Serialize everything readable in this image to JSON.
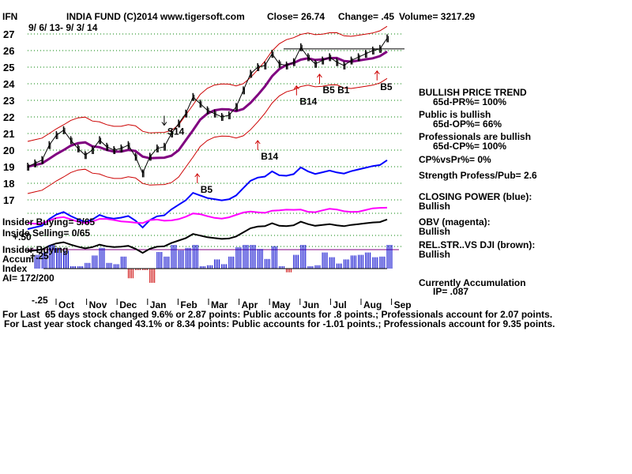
{
  "header": {
    "symbol": "IFN",
    "title": "INDIA FUND   (C)2014 www.tigersoft.com",
    "close": "Close= 26.74",
    "change": "Change= .45",
    "volume": "Volume= 3217.29",
    "date_range": "9/ 6/ 13- 9/ 3/ 14"
  },
  "chart_data": {
    "type": "line",
    "ylim": [
      17,
      27
    ],
    "y_ticks": [
      "27",
      "26",
      "25",
      "24",
      "23",
      "22",
      "21",
      "20",
      "19",
      "18",
      "17"
    ],
    "months": [
      "Oct",
      "Nov",
      "Dec",
      "Jan",
      "Feb",
      "Mar",
      "Apr",
      "May",
      "Jun",
      "Jul",
      "Aug",
      "Sep"
    ],
    "lower_ticks": [
      "+.50",
      "+.25",
      "-.25"
    ],
    "resistance_line": 26.1,
    "series": [
      {
        "color": "#000000",
        "x": [
          0,
          5,
          10,
          15,
          20,
          25,
          30,
          35,
          40,
          45,
          50,
          55,
          60,
          65,
          70,
          75,
          80,
          85,
          90,
          95,
          100,
          105,
          110,
          115,
          120,
          125,
          130,
          135,
          140,
          145,
          150,
          155,
          160,
          165,
          170,
          175,
          180,
          185,
          190,
          195,
          200,
          205,
          210,
          215,
          220,
          225,
          230,
          235,
          240,
          245,
          250
        ],
        "values": [
          19.0,
          19.2,
          19.4,
          20.3,
          20.9,
          21.2,
          20.6,
          20.1,
          19.7,
          20.0,
          20.6,
          20.2,
          20.0,
          20.1,
          20.3,
          19.6,
          18.6,
          19.6,
          20.1,
          20.2,
          21.0,
          21.6,
          22.2,
          23.2,
          22.8,
          22.4,
          22.2,
          22.0,
          22.1,
          22.6,
          23.6,
          24.6,
          25.0,
          25.1,
          25.8,
          25.2,
          25.1,
          25.3,
          26.2,
          25.6,
          25.2,
          25.4,
          25.6,
          25.3,
          25.1,
          25.4,
          25.6,
          25.8,
          26.0,
          26.1,
          26.74
        ]
      }
    ],
    "signals": [
      {
        "label": "S14",
        "direction": "down",
        "x": 95,
        "value": 21.5
      },
      {
        "label": "B5",
        "direction": "up",
        "x": 118,
        "value": 18.0
      },
      {
        "label": "B14",
        "direction": "up",
        "x": 187,
        "value": 23.3
      },
      {
        "label": "B5 B1",
        "direction": "up",
        "x": 203,
        "value": 24.0
      },
      {
        "label": "B14",
        "direction": "up",
        "x": 160,
        "value": 20.0
      },
      {
        "label": "B5",
        "direction": "up",
        "x": 243,
        "value": 24.2
      }
    ]
  },
  "indicators": {
    "insider_buying": "Insider Buying= 5/65",
    "insider_selling": "Inside Selling= 0/65",
    "insider_buying_2": "Insider Buying",
    "accum": "Accum",
    "index": "Index",
    "ai": "AI= 172/200"
  },
  "side_panel": {
    "trend_title": "BULLISH PRICE TREND",
    "pr_line": "65d-PR%= 100%",
    "public_title": "Public is bullish",
    "op_line": "65d-OP%= 66%",
    "pro_title": "Professionals are bullish",
    "cp_line": "65d-CP%= 100%",
    "cpvspr": "CP%vsPr%=  0%",
    "strength": "Strength Profess/Pub= 2.6",
    "closing_power": "CLOSING POWER (blue):",
    "closing_power_val": "Bullish",
    "obv": "OBV (magenta):",
    "obv_val": "Bullish",
    "relstr": "REL.STR..VS DJI (brown):",
    "relstr_val": "Bullish",
    "accum_title": "Currently Accumulation",
    "ip": "IP=  .087"
  },
  "footer": {
    "line1_prefix": "For Last",
    "line1": "65 days stock changed  9.6% or  2.87 points:  Public accounts for  .8 points.;  Professionals account for  2.07 points.",
    "line2": "For Last year stock changed  43.1% or  8.34 points:  Public accounts for -1.01 points.;  Professionals account for  9.35 points."
  },
  "colors": {
    "price": "#000000",
    "bands": "#cc0000",
    "ma": "#800080",
    "closing_power": "#0000ff",
    "obv": "#ff00ff",
    "relstr": "#000000",
    "accum": "#0000cc",
    "distrib": "#cc0000",
    "grid": "#008000"
  }
}
